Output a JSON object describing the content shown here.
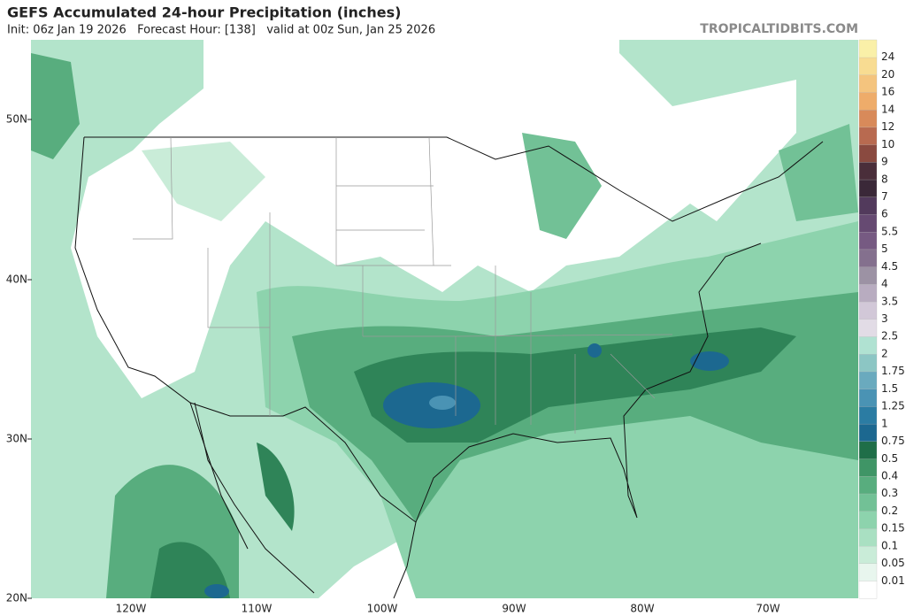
{
  "header": {
    "title": "GEFS Accumulated 24-hour Precipitation (inches)",
    "subtitle": "Init: 06z Jan 19 2026   Forecast Hour: [138]   valid at 00z Sun, Jan 25 2026",
    "watermark": "TROPICALTIDBITS.COM"
  },
  "map": {
    "lat_labels": [
      "50N",
      "40N",
      "30N",
      "20N"
    ],
    "lon_labels": [
      "120W",
      "110W",
      "100W",
      "90W",
      "80W",
      "70W"
    ]
  },
  "colorbar": {
    "labels": [
      "0.01",
      "0.05",
      "0.1",
      "0.15",
      "0.2",
      "0.3",
      "0.4",
      "0.5",
      "0.75",
      "1",
      "1.25",
      "1.5",
      "1.75",
      "2",
      "2.5",
      "3",
      "3.5",
      "4",
      "4.5",
      "5",
      "5.5",
      "6",
      "7",
      "8",
      "9",
      "10",
      "12",
      "14",
      "16",
      "20",
      "24"
    ],
    "colors": [
      "#ffffff",
      "#e8f6ee",
      "#c9ecd8",
      "#a9e0c2",
      "#8dd3ad",
      "#72c196",
      "#58ad7e",
      "#3f9566",
      "#1f6e48",
      "#1c6890",
      "#2b7ca3",
      "#4a93b4",
      "#6aaabe",
      "#8cc6c4",
      "#b0e2d2",
      "#e2dce6",
      "#d2c8d8",
      "#b8acc0",
      "#9c92a4",
      "#84708e",
      "#765a82",
      "#664a72",
      "#523a5c",
      "#3a2838",
      "#4a2e3a",
      "#8a4a40",
      "#b86a50",
      "#d88a5a",
      "#eeac6a",
      "#f4c47e",
      "#f8dc92",
      "#faf0a8"
    ]
  }
}
